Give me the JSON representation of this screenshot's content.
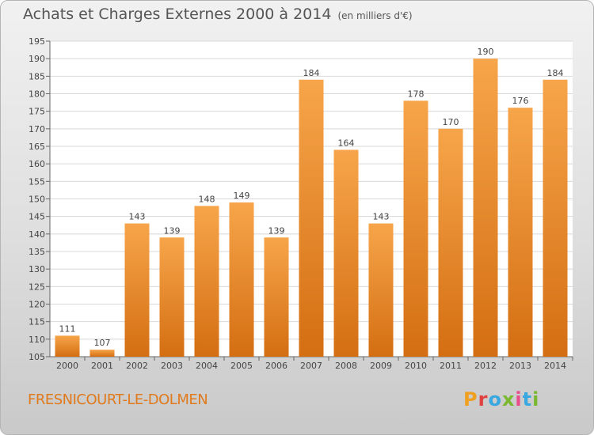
{
  "title": "Achats et Charges Externes 2000 à 2014",
  "unit": "(en milliers d'€)",
  "commune": "FRESNICOURT-LE-DOLMEN",
  "brand": "Proxiti",
  "colors": {
    "bar_top": "#f7a54a",
    "bar_bottom": "#d46e12",
    "accent": "#e07a1c"
  },
  "chart_data": {
    "type": "bar",
    "categories": [
      "2000",
      "2001",
      "2002",
      "2003",
      "2004",
      "2005",
      "2006",
      "2007",
      "2008",
      "2009",
      "2010",
      "2011",
      "2012",
      "2013",
      "2014"
    ],
    "values": [
      111,
      107,
      143,
      139,
      148,
      149,
      139,
      184,
      164,
      143,
      178,
      170,
      190,
      176,
      184
    ],
    "ylim": [
      105,
      195
    ],
    "yticks": [
      105,
      110,
      115,
      120,
      125,
      130,
      135,
      140,
      145,
      150,
      155,
      160,
      165,
      170,
      175,
      180,
      185,
      190,
      195
    ],
    "grid": true,
    "data_labels": true
  }
}
